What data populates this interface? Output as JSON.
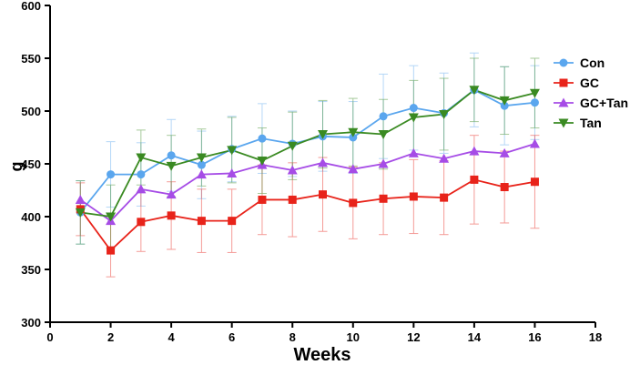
{
  "chart_data": {
    "type": "line",
    "title": "",
    "xlabel": "Weeks",
    "ylabel": "g",
    "xlim": [
      0,
      18
    ],
    "ylim": [
      300,
      600
    ],
    "xticks": [
      0,
      2,
      4,
      6,
      8,
      10,
      12,
      14,
      16,
      18
    ],
    "yticks": [
      300,
      350,
      400,
      450,
      500,
      550,
      600
    ],
    "x": [
      1,
      2,
      3,
      4,
      5,
      6,
      7,
      8,
      9,
      10,
      11,
      12,
      13,
      14,
      15,
      16
    ],
    "legend_position": "right",
    "series": [
      {
        "name": "Con",
        "color": "#5aa6ee",
        "marker": "circle",
        "values": [
          404,
          440,
          440,
          458,
          449,
          464,
          474,
          469,
          476,
          475,
          495,
          503,
          498,
          520,
          505,
          508
        ],
        "errors": [
          30,
          31,
          30,
          34,
          32,
          31,
          33,
          31,
          33,
          34,
          40,
          40,
          38,
          35,
          37,
          35
        ]
      },
      {
        "name": "GC",
        "color": "#e8231a",
        "marker": "square",
        "values": [
          407,
          368,
          395,
          401,
          396,
          396,
          416,
          416,
          421,
          413,
          417,
          419,
          418,
          435,
          428,
          433
        ],
        "errors": [
          25,
          25,
          28,
          32,
          30,
          30,
          33,
          35,
          35,
          34,
          34,
          35,
          35,
          42,
          34,
          44
        ]
      },
      {
        "name": "GC+Tan",
        "color": "#a64ce6",
        "marker": "triangle-up",
        "values": [
          416,
          396,
          426,
          421,
          440,
          441,
          449,
          444,
          451,
          445,
          450,
          460,
          455,
          462,
          460,
          469
        ]
      },
      {
        "name": "Tan",
        "color": "#3a8a22",
        "marker": "triangle-down",
        "values": [
          404,
          400,
          456,
          448,
          456,
          463,
          453,
          467,
          478,
          480,
          478,
          494,
          497,
          520,
          510,
          517
        ],
        "errors": [
          30,
          30,
          26,
          29,
          27,
          31,
          31,
          32,
          32,
          32,
          33,
          35,
          34,
          30,
          32,
          33
        ]
      }
    ]
  }
}
